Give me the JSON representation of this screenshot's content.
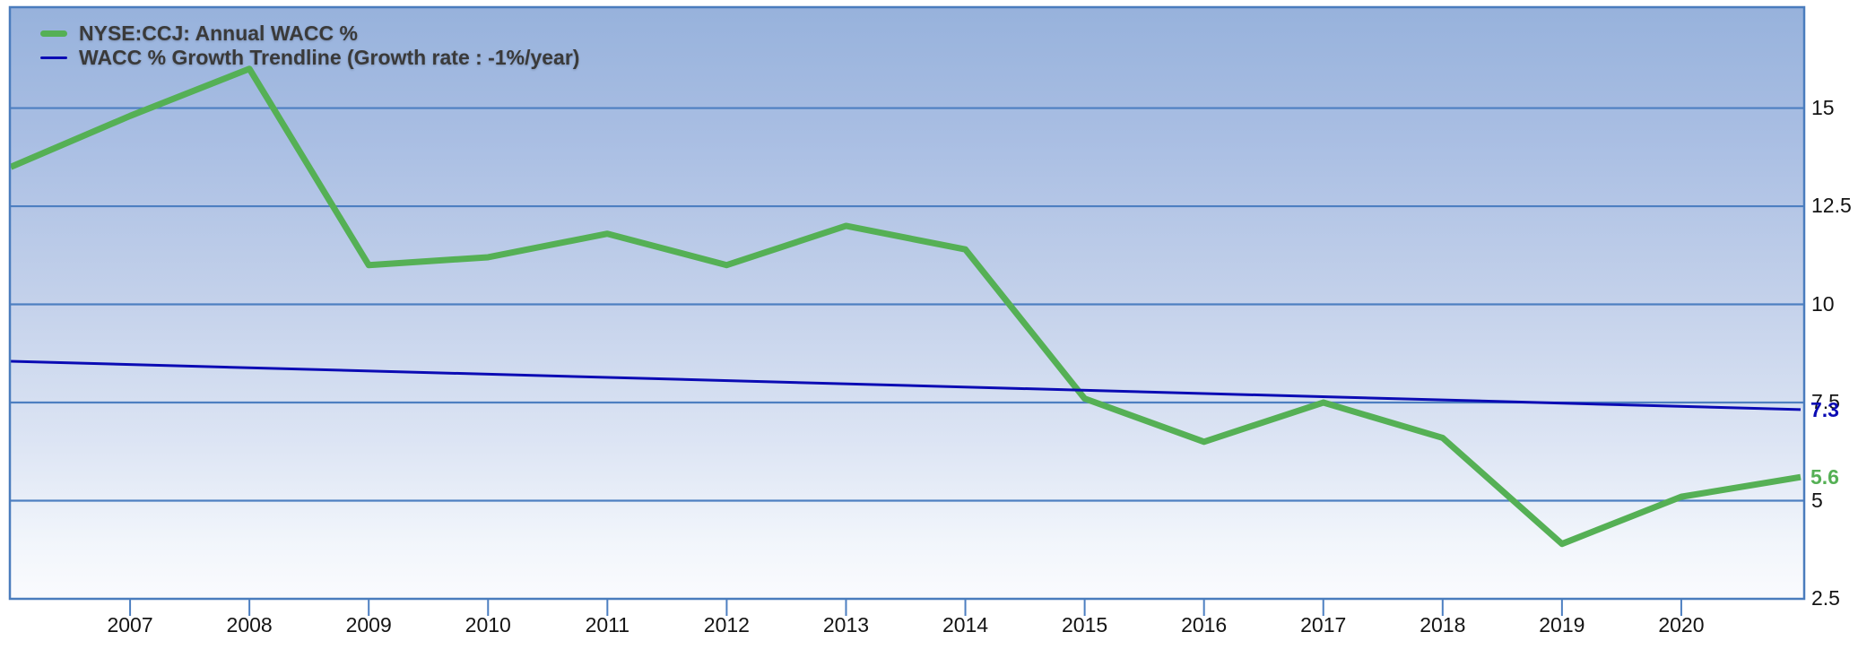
{
  "colors": {
    "series_green": "#55b055",
    "trendline_navy": "#0b0bb4",
    "grid_blue": "#4d7fc1",
    "border_blue": "#4a7cbd",
    "tick_blue": "#4d7fc1",
    "label_black": "#141414",
    "legend_text": "#3a3a3a",
    "bg_top": "#97b2dc",
    "bg_bottom": "#fafbfe"
  },
  "legend": {
    "items": [
      {
        "label": "NYSE:CCJ: Annual WACC %",
        "swatch": "thick-green-line"
      },
      {
        "label": "WACC % Growth Trendline (Growth rate : -1%/year)",
        "swatch": "thin-navy-line"
      }
    ]
  },
  "y_axis": {
    "tick_labels": [
      "15",
      "12.5",
      "10",
      "7.5",
      "5",
      "2.5"
    ],
    "tick_values": [
      15,
      12.5,
      10,
      7.5,
      5,
      2.5
    ]
  },
  "x_axis": {
    "tick_labels": [
      "2007",
      "2008",
      "2009",
      "2010",
      "2011",
      "2012",
      "2013",
      "2014",
      "2015",
      "2016",
      "2017",
      "2018",
      "2019",
      "2020"
    ],
    "tick_values": [
      2007,
      2008,
      2009,
      2010,
      2011,
      2012,
      2013,
      2014,
      2015,
      2016,
      2017,
      2018,
      2019,
      2020
    ]
  },
  "end_labels": [
    {
      "text": "7.3",
      "value": 7.32,
      "color_key": "trendline_navy",
      "series": "trendline"
    },
    {
      "text": "5.6",
      "value": 5.6,
      "color_key": "series_green",
      "series": "wacc"
    }
  ],
  "chart_data": {
    "type": "line",
    "series": [
      {
        "name": "NYSE:CCJ: Annual WACC %",
        "color_key": "series_green",
        "stroke_width": 7,
        "x": [
          2006,
          2007,
          2008,
          2009,
          2010,
          2011,
          2012,
          2013,
          2014,
          2015,
          2016,
          2017,
          2018,
          2019,
          2020,
          2021
        ],
        "values": [
          13.5,
          14.8,
          16.0,
          11.0,
          11.2,
          11.8,
          11.0,
          12.0,
          11.4,
          7.6,
          6.5,
          7.5,
          6.6,
          3.9,
          5.1,
          5.6
        ]
      },
      {
        "name": "WACC % Growth Trendline (Growth rate : -1%/year)",
        "color_key": "trendline_navy",
        "stroke_width": 3,
        "growth_rate": "-1%/year",
        "x": [
          2006,
          2021
        ],
        "values": [
          8.55,
          7.32
        ]
      }
    ],
    "xlim": [
      2006,
      2021
    ],
    "ylim": [
      2.5,
      17.57
    ],
    "y_gridlines": [
      15,
      12.5,
      10,
      7.5,
      5,
      2.5
    ],
    "grid": "horizontal-only",
    "legend_position": "top-left"
  }
}
